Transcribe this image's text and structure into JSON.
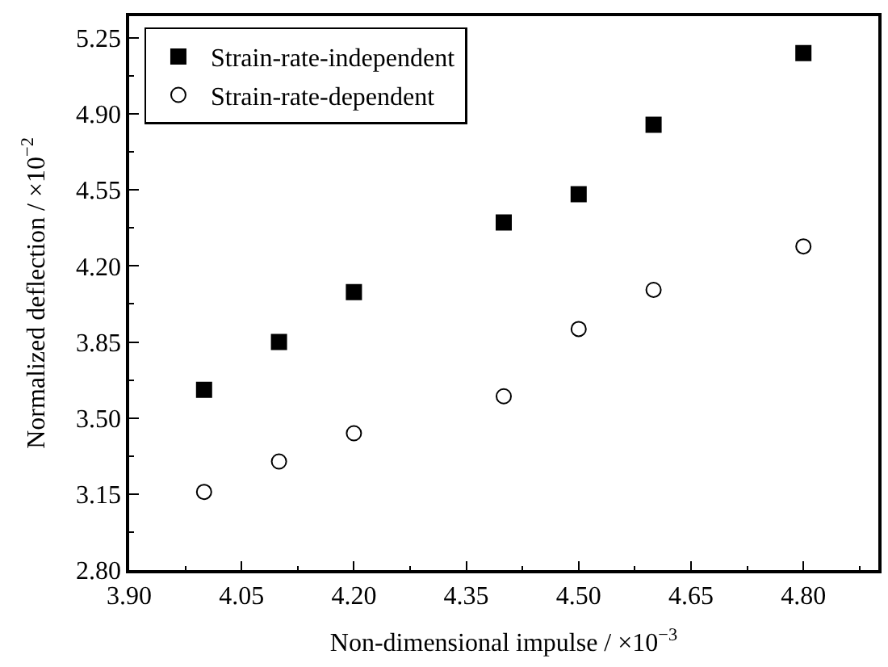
{
  "chart_data": {
    "type": "scatter",
    "xlabel": "Non-dimensional impulse / ×10$^{−3}$",
    "ylabel": "Normalized deflection / ×10$^{−2}$",
    "x": [
      4.0,
      4.1,
      4.2,
      4.4,
      4.5,
      4.6,
      4.8
    ],
    "series": [
      {
        "name": "Strain-rate-independent",
        "color": "#000000",
        "marker": "square",
        "values": [
          3.63,
          3.85,
          4.08,
          4.4,
          4.53,
          4.85,
          5.18
        ]
      },
      {
        "name": "Strain-rate-dependent",
        "color": "#000000",
        "marker": "circle",
        "values": [
          3.16,
          3.3,
          3.43,
          3.6,
          3.91,
          4.09,
          4.29
        ]
      }
    ],
    "xlim": [
      3.9,
      4.9
    ],
    "xticks": [
      {
        "value": 3.9,
        "label": "3.90"
      },
      {
        "value": 4.05,
        "label": "4.05"
      },
      {
        "value": 4.2,
        "label": "4.20"
      },
      {
        "value": 4.35,
        "label": "4.35"
      },
      {
        "value": 4.5,
        "label": "4.50"
      },
      {
        "value": 4.65,
        "label": "4.65"
      },
      {
        "value": 4.8,
        "label": "4.80"
      }
    ],
    "ylim": [
      2.8,
      5.35
    ],
    "yticks": [
      {
        "value": 2.8,
        "label": "2.80"
      },
      {
        "value": 3.15,
        "label": "3.15"
      },
      {
        "value": 3.5,
        "label": "3.50"
      },
      {
        "value": 3.85,
        "label": "3.85"
      },
      {
        "value": 4.2,
        "label": "4.20"
      },
      {
        "value": 4.55,
        "label": "4.55"
      },
      {
        "value": 4.9,
        "label": "4.90"
      },
      {
        "value": 5.25,
        "label": "5.25"
      }
    ],
    "legend": "top left"
  }
}
